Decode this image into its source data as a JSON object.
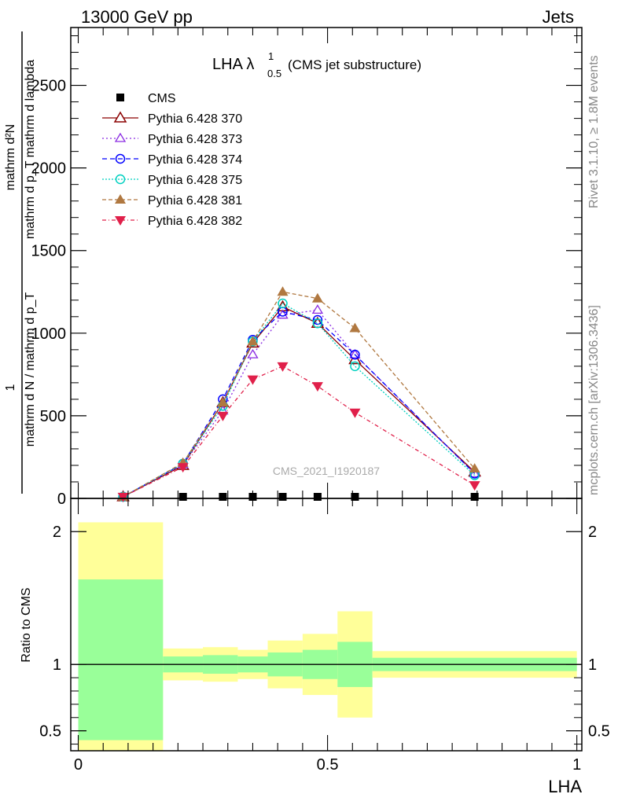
{
  "header": {
    "left": "13000 GeV pp",
    "right": "Jets"
  },
  "side_text": {
    "rivet": "Rivet 3.1.10, ≥ 1.8M events",
    "mcplots": "mcplots.cern.ch [arXiv:1306.3436]"
  },
  "watermark": "CMS_2021_I1920187",
  "colors": {
    "CMS": "#000000",
    "370": "#8b0000",
    "373": "#8a2be2",
    "374": "#0000ff",
    "375": "#00d0c0",
    "381": "#b07840",
    "382": "#e0204a",
    "band_inner": "#99ff99",
    "band_outer": "#ffff99"
  },
  "chart_data": [
    {
      "type": "line",
      "title_main": "LHA λ",
      "title_sup": "1",
      "title_sub": "0.5",
      "title_paren": "(CMS jet substructure)",
      "ylabel_num_1": "1",
      "ylabel_num_2": "mathrm d²N",
      "ylabel_num_3": "mathrm d p_T mathrm d lambda",
      "ylabel_den": "mathrm d N / mathrm d p_T",
      "xlim": [
        -0.015,
        1.01
      ],
      "ylim": [
        0,
        2850
      ],
      "x_ticks": [
        0,
        0.5,
        1
      ],
      "y_ticks": [
        0,
        500,
        1000,
        1500,
        2000,
        2500
      ],
      "y_tick_labels": [
        "0",
        "500",
        "1000",
        "1500",
        "2000",
        "2500"
      ],
      "x": [
        0.09,
        0.21,
        0.29,
        0.35,
        0.41,
        0.48,
        0.555,
        0.795
      ],
      "series": [
        {
          "name": "CMS",
          "key": "CMS",
          "marker": "square",
          "dash": "",
          "values": [
            0,
            0,
            0,
            0,
            0,
            0,
            0,
            0
          ]
        },
        {
          "name": "Pythia 6.428 370",
          "key": "370",
          "marker": "triangle-open",
          "dash": "",
          "values": [
            10,
            200,
            580,
            940,
            1160,
            1060,
            840,
            160
          ]
        },
        {
          "name": "Pythia 6.428 373",
          "key": "373",
          "marker": "triangle-open-small",
          "dash": "2,3",
          "values": [
            10,
            205,
            530,
            870,
            1110,
            1140,
            870,
            150
          ]
        },
        {
          "name": "Pythia 6.428 374",
          "key": "374",
          "marker": "circle-open",
          "dash": "6,4",
          "values": [
            10,
            210,
            600,
            960,
            1130,
            1080,
            870,
            150
          ]
        },
        {
          "name": "Pythia 6.428 375",
          "key": "375",
          "marker": "circle-open",
          "dash": "2,2",
          "values": [
            10,
            210,
            560,
            950,
            1180,
            1060,
            800,
            140
          ]
        },
        {
          "name": "Pythia 6.428 381",
          "key": "381",
          "marker": "triangle-filled",
          "dash": "5,3",
          "values": [
            10,
            215,
            580,
            950,
            1250,
            1210,
            1030,
            180
          ]
        },
        {
          "name": "Pythia 6.428 382",
          "key": "382",
          "marker": "triangle-down-filled",
          "dash": "5,3,1,3",
          "values": [
            10,
            190,
            500,
            720,
            800,
            680,
            520,
            80
          ]
        }
      ]
    },
    {
      "type": "area",
      "ylabel": "Ratio to CMS",
      "xlabel": "LHA",
      "xlim": [
        -0.015,
        1.01
      ],
      "ylim": [
        0.35,
        2.25
      ],
      "y_ticks": [
        0.5,
        1,
        2
      ],
      "y_tick_labels": [
        "0.5",
        "1",
        "2"
      ],
      "x_ticks": [
        0,
        0.5,
        1
      ],
      "x_tick_labels": [
        "0",
        "0.5",
        "1"
      ],
      "bins": [
        {
          "x0": 0.0,
          "x1": 0.17,
          "in_lo": 0.43,
          "in_hi": 1.64,
          "out_lo": 0.35,
          "out_hi": 2.07
        },
        {
          "x0": 0.17,
          "x1": 0.25,
          "in_lo": 0.94,
          "in_hi": 1.06,
          "out_lo": 0.88,
          "out_hi": 1.12
        },
        {
          "x0": 0.25,
          "x1": 0.32,
          "in_lo": 0.93,
          "in_hi": 1.07,
          "out_lo": 0.87,
          "out_hi": 1.13
        },
        {
          "x0": 0.32,
          "x1": 0.38,
          "in_lo": 0.94,
          "in_hi": 1.06,
          "out_lo": 0.89,
          "out_hi": 1.11
        },
        {
          "x0": 0.38,
          "x1": 0.45,
          "in_lo": 0.91,
          "in_hi": 1.09,
          "out_lo": 0.82,
          "out_hi": 1.18
        },
        {
          "x0": 0.45,
          "x1": 0.52,
          "in_lo": 0.89,
          "in_hi": 1.11,
          "out_lo": 0.77,
          "out_hi": 1.23
        },
        {
          "x0": 0.52,
          "x1": 0.59,
          "in_lo": 0.83,
          "in_hi": 1.17,
          "out_lo": 0.6,
          "out_hi": 1.4
        },
        {
          "x0": 0.59,
          "x1": 1.0,
          "in_lo": 0.95,
          "in_hi": 1.05,
          "out_lo": 0.9,
          "out_hi": 1.1
        }
      ]
    }
  ]
}
